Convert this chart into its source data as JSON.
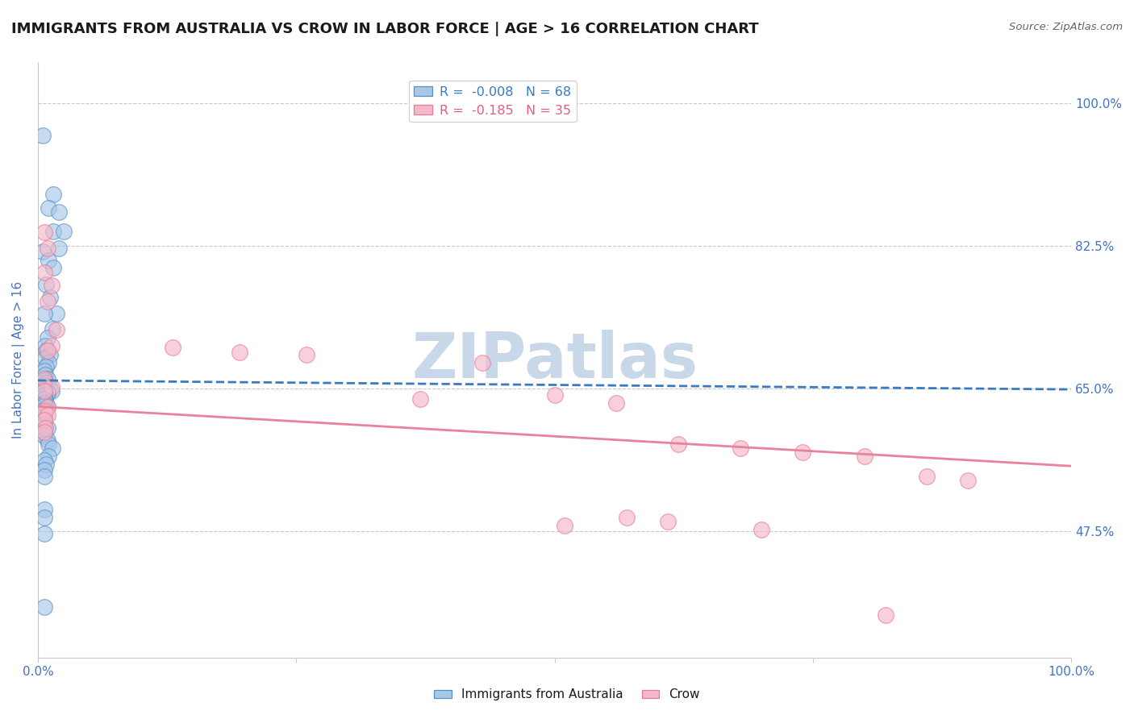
{
  "title": "IMMIGRANTS FROM AUSTRALIA VS CROW IN LABOR FORCE | AGE > 16 CORRELATION CHART",
  "source": "Source: ZipAtlas.com",
  "ylabel": "In Labor Force | Age > 16",
  "ytick_labels": [
    "100.0%",
    "82.5%",
    "65.0%",
    "47.5%"
  ],
  "ytick_positions": [
    1.0,
    0.825,
    0.65,
    0.475
  ],
  "xmin": 0.0,
  "xmax": 1.0,
  "ymin": 0.32,
  "ymax": 1.05,
  "legend_label_blue": "R =  -0.008   N = 68",
  "legend_label_pink": "R =  -0.185   N = 35",
  "footer_blue": "Immigrants from Australia",
  "footer_pink": "Crow",
  "watermark": "ZIPatlas",
  "blue_scatter_x": [
    0.005,
    0.015,
    0.01,
    0.02,
    0.015,
    0.025,
    0.02,
    0.005,
    0.01,
    0.015,
    0.008,
    0.012,
    0.018,
    0.006,
    0.014,
    0.009,
    0.007,
    0.008,
    0.012,
    0.007,
    0.01,
    0.008,
    0.006,
    0.007,
    0.009,
    0.006,
    0.007,
    0.011,
    0.006,
    0.013,
    0.009,
    0.006,
    0.006,
    0.007,
    0.006,
    0.008,
    0.006,
    0.009,
    0.006,
    0.006,
    0.006,
    0.006,
    0.006,
    0.006,
    0.009,
    0.006,
    0.006,
    0.009,
    0.01,
    0.014,
    0.01,
    0.006,
    0.008,
    0.006,
    0.006,
    0.006,
    0.006,
    0.006,
    0.009,
    0.006,
    0.006,
    0.006,
    0.006,
    0.006,
    0.006,
    0.006,
    0.006,
    0.006
  ],
  "blue_scatter_y": [
    0.96,
    0.888,
    0.872,
    0.867,
    0.843,
    0.843,
    0.822,
    0.818,
    0.807,
    0.798,
    0.778,
    0.762,
    0.742,
    0.742,
    0.723,
    0.712,
    0.702,
    0.697,
    0.692,
    0.688,
    0.682,
    0.677,
    0.672,
    0.667,
    0.662,
    0.66,
    0.657,
    0.652,
    0.65,
    0.647,
    0.645,
    0.642,
    0.64,
    0.637,
    0.634,
    0.632,
    0.63,
    0.627,
    0.624,
    0.622,
    0.62,
    0.617,
    0.612,
    0.607,
    0.602,
    0.597,
    0.592,
    0.587,
    0.582,
    0.577,
    0.567,
    0.562,
    0.557,
    0.55,
    0.542,
    0.654,
    0.65,
    0.647,
    0.645,
    0.642,
    0.637,
    0.632,
    0.629,
    0.624,
    0.502,
    0.492,
    0.382,
    0.472
  ],
  "pink_scatter_x": [
    0.006,
    0.009,
    0.006,
    0.013,
    0.009,
    0.018,
    0.013,
    0.009,
    0.006,
    0.013,
    0.006,
    0.009,
    0.006,
    0.009,
    0.006,
    0.007,
    0.006,
    0.13,
    0.195,
    0.26,
    0.37,
    0.43,
    0.5,
    0.56,
    0.62,
    0.68,
    0.74,
    0.8,
    0.86,
    0.9,
    0.57,
    0.61,
    0.51,
    0.7,
    0.82
  ],
  "pink_scatter_y": [
    0.842,
    0.822,
    0.792,
    0.777,
    0.757,
    0.722,
    0.702,
    0.697,
    0.662,
    0.652,
    0.647,
    0.627,
    0.622,
    0.617,
    0.612,
    0.602,
    0.597,
    0.7,
    0.695,
    0.692,
    0.637,
    0.682,
    0.642,
    0.632,
    0.582,
    0.577,
    0.572,
    0.567,
    0.542,
    0.537,
    0.492,
    0.487,
    0.482,
    0.477,
    0.372
  ],
  "blue_line_x": [
    0.0,
    1.0
  ],
  "blue_line_y_start": 0.66,
  "blue_line_y_end": 0.649,
  "pink_line_x": [
    0.0,
    1.0
  ],
  "pink_line_y_start": 0.628,
  "pink_line_y_end": 0.555,
  "title_color": "#1a1a1a",
  "title_fontsize": 13,
  "blue_scatter_color": "#a8c8e8",
  "blue_edge_color": "#5590c8",
  "pink_scatter_color": "#f5b8c8",
  "pink_edge_color": "#e87898",
  "blue_line_color": "#3a7abf",
  "pink_line_color": "#e8849a",
  "source_color": "#666666",
  "axis_label_color": "#4472c4",
  "grid_color": "#c8c8c8",
  "watermark_color": "#c8d8e8",
  "legend_blue_text_color": "#3a7abf",
  "legend_pink_text_color": "#e06080"
}
